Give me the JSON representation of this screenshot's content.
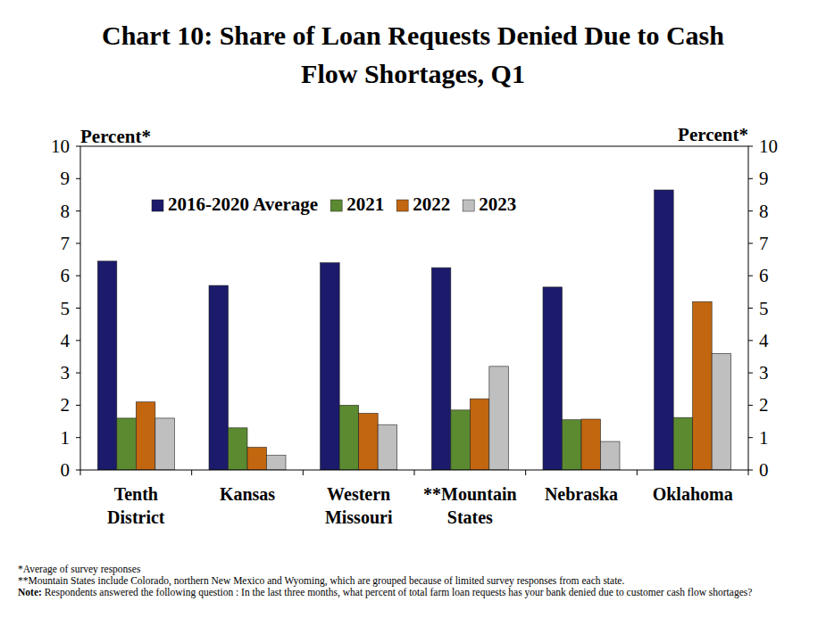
{
  "chart_data": {
    "type": "bar",
    "title": "Chart 10: Share of Loan Requests Denied Due to Cash Flow Shortages, Q1",
    "y_label": "Percent*",
    "y2_label": "Percent*",
    "categories": [
      "Tenth District",
      "Kansas",
      "Western Missouri",
      "**Mountain States",
      "Nebraska",
      "Oklahoma"
    ],
    "series": [
      {
        "name": "2016-2020 Average",
        "color": "#1b1a6b",
        "values": [
          6.45,
          5.7,
          6.4,
          6.25,
          5.65,
          8.65
        ]
      },
      {
        "name": "2021",
        "color": "#5b8a31",
        "values": [
          1.6,
          1.3,
          2.0,
          1.85,
          1.55,
          1.62
        ]
      },
      {
        "name": "2022",
        "color": "#c2660f",
        "values": [
          2.1,
          0.7,
          1.75,
          2.2,
          1.57,
          5.2
        ]
      },
      {
        "name": "2023",
        "color": "#bfbfbf",
        "values": [
          1.6,
          0.45,
          1.4,
          3.2,
          0.88,
          3.6
        ]
      }
    ],
    "ylim": [
      0,
      10
    ],
    "yticks": [
      0,
      1,
      2,
      3,
      4,
      5,
      6,
      7,
      8,
      9,
      10
    ],
    "y2lim": [
      0,
      10
    ],
    "y2ticks": [
      0,
      1,
      2,
      3,
      4,
      5,
      6,
      7,
      8,
      9,
      10
    ],
    "grid": false,
    "legend": "top",
    "notes": [
      "*Average of survey responses",
      "**Mountain States include Colorado, northern New Mexico and Wyoming,  which are grouped because of limited  survey responses from each state.",
      "Note: Respondents answered the following question : In the last three months, what percent of total farm loan requests has your bank denied due to customer cash flow shortages?"
    ]
  }
}
